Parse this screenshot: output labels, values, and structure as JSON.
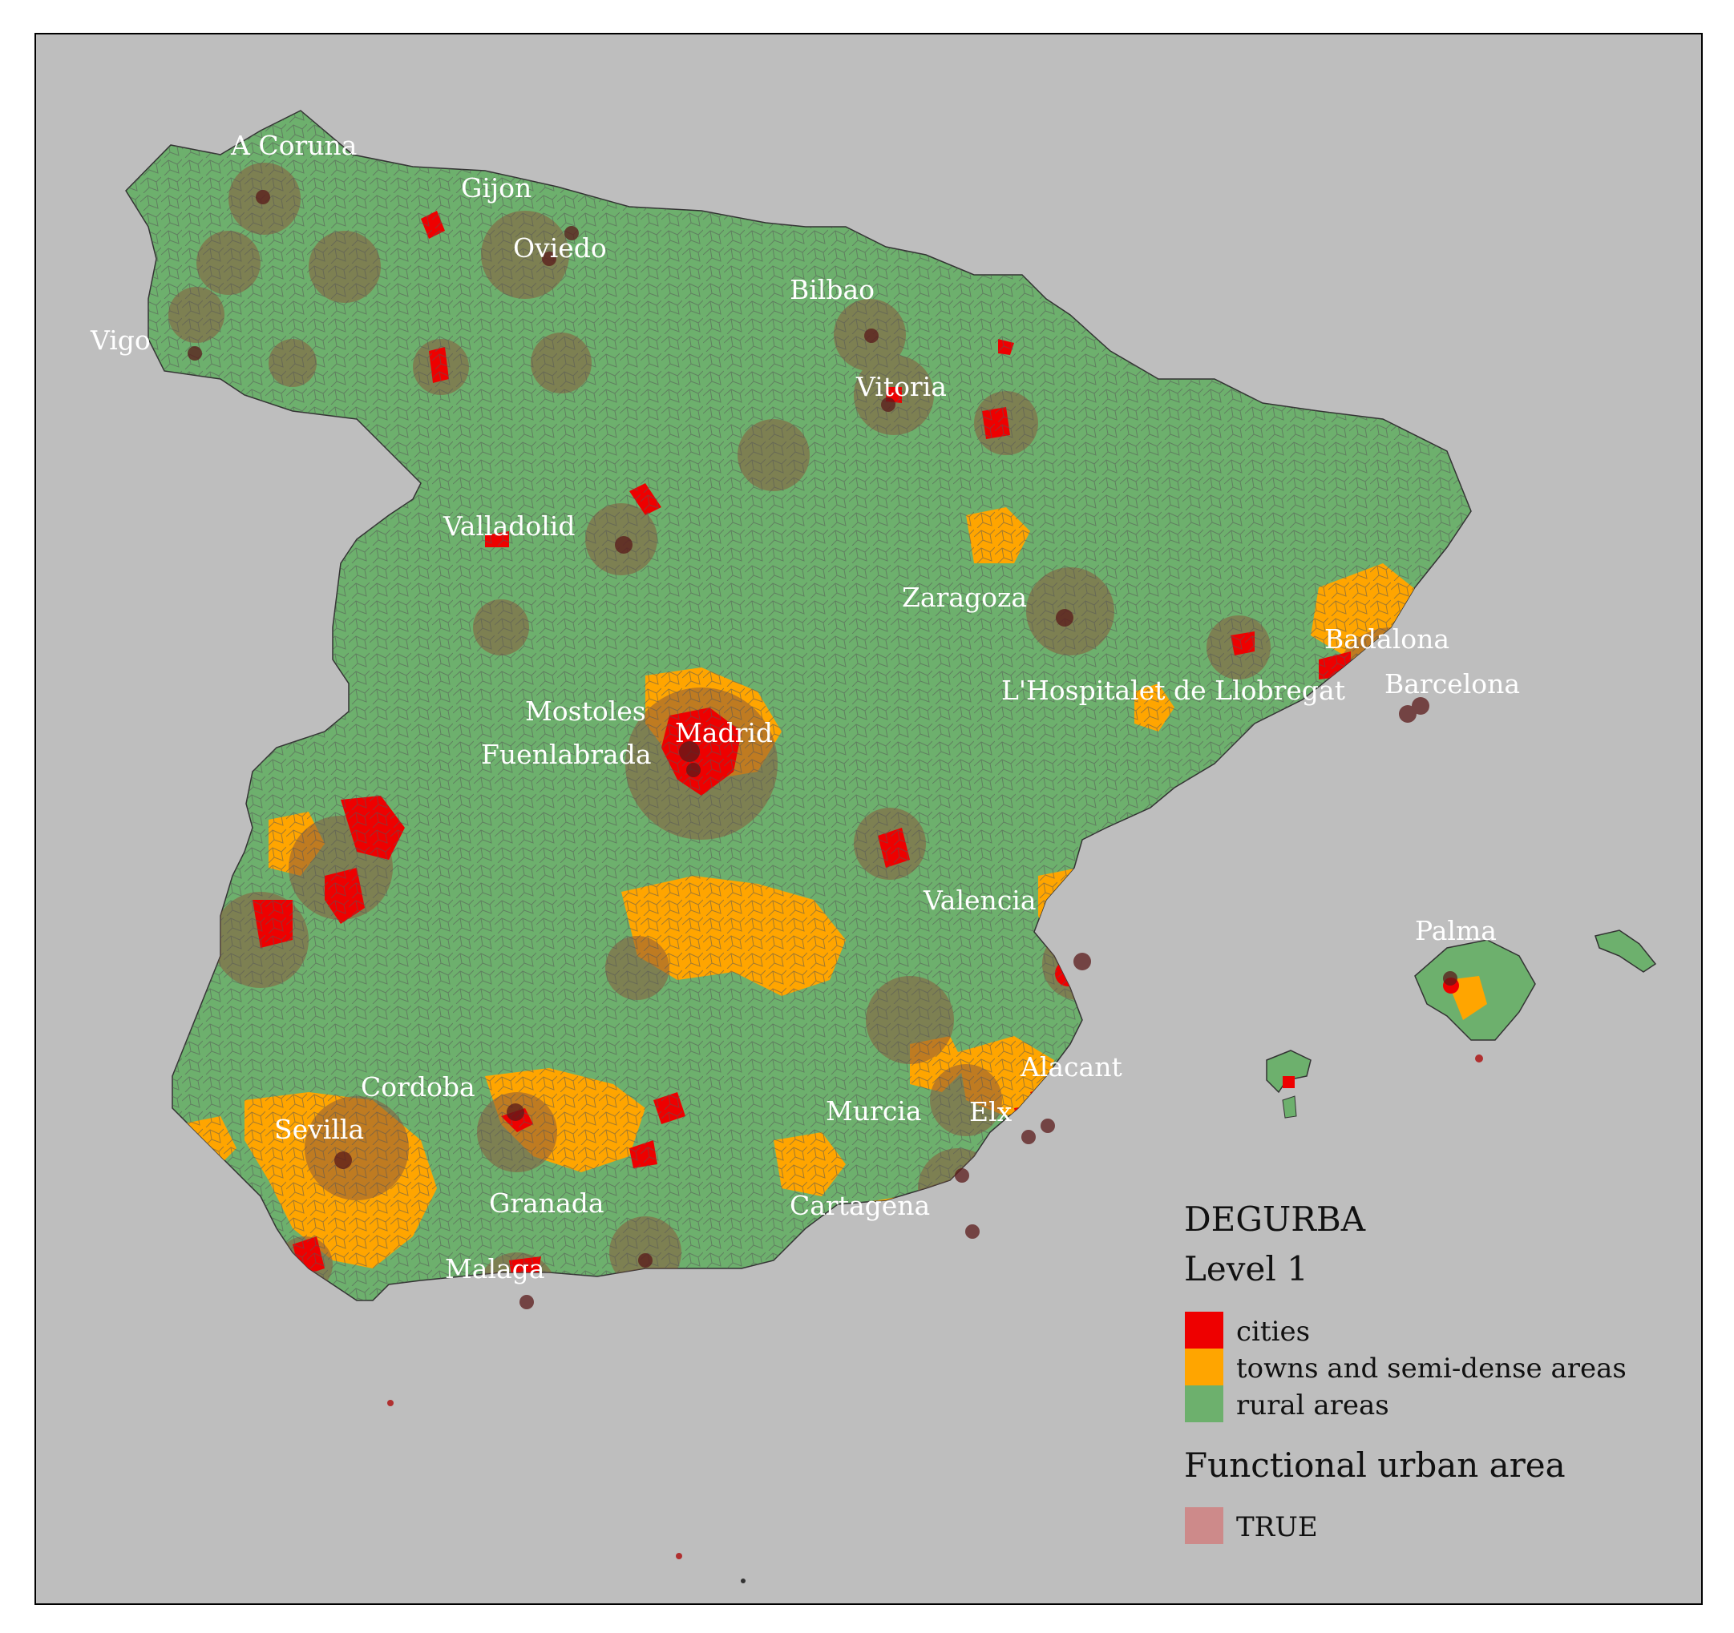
{
  "colors": {
    "background": "#bebebe",
    "cities": "#ee0000",
    "towns": "#ffa500",
    "rural": "#6db06d",
    "fua": "#cd8a8a",
    "fua_overlay": "#8b5a3c",
    "borders": "#555555"
  },
  "cities": [
    {
      "name": "A Coruna"
    },
    {
      "name": "Gijon"
    },
    {
      "name": "Oviedo"
    },
    {
      "name": "Vigo"
    },
    {
      "name": "Bilbao"
    },
    {
      "name": "Vitoria"
    },
    {
      "name": "Valladolid"
    },
    {
      "name": "Zaragoza"
    },
    {
      "name": "Badalona"
    },
    {
      "name": "Barcelona"
    },
    {
      "name": "L'Hospitalet de Llobregat"
    },
    {
      "name": "Mostoles"
    },
    {
      "name": "Madrid"
    },
    {
      "name": "Fuenlabrada"
    },
    {
      "name": "Valencia"
    },
    {
      "name": "Palma"
    },
    {
      "name": "Cordoba"
    },
    {
      "name": "Sevilla"
    },
    {
      "name": "Murcia"
    },
    {
      "name": "Elx"
    },
    {
      "name": "Alacant"
    },
    {
      "name": "Granada"
    },
    {
      "name": "Cartagena"
    },
    {
      "name": "Malaga"
    }
  ],
  "legend": {
    "title1": "DEGURBA",
    "title2": "Level 1",
    "items": [
      {
        "label": "cities",
        "color": "#ee0000"
      },
      {
        "label": "towns and semi-dense areas",
        "color": "#ffa500"
      },
      {
        "label": "rural areas",
        "color": "#6db06d"
      }
    ],
    "fua_title": "Functional urban area",
    "fua_items": [
      {
        "label": "TRUE",
        "color": "#cd8a8a"
      }
    ]
  }
}
